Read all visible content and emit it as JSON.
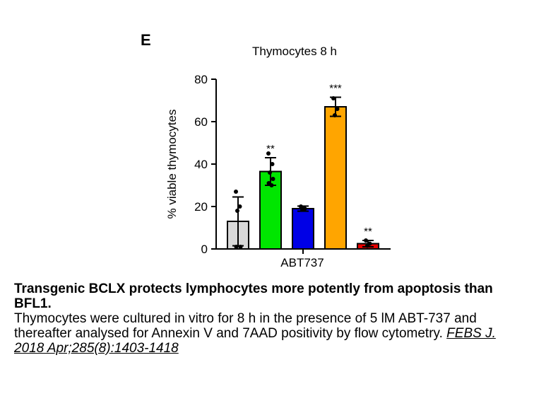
{
  "panel_letter": "E",
  "chart_data": {
    "type": "bar",
    "title": "Thymocytes 8 h",
    "ylabel": "% viable thymocytes",
    "xlabel": "ABT737",
    "ylim": [
      0,
      80
    ],
    "yticks": [
      0,
      20,
      40,
      60,
      80
    ],
    "grid": false,
    "bars": [
      {
        "value": 13,
        "error": 11.5,
        "color": "#d9d9d9",
        "significance": "",
        "points": [
          27,
          20,
          18,
          1,
          1
        ]
      },
      {
        "value": 36.5,
        "error": 6.5,
        "color": "#00e600",
        "significance": "**",
        "points": [
          45,
          40,
          36,
          33,
          31,
          30
        ]
      },
      {
        "value": 19,
        "error": 1.2,
        "color": "#0000e6",
        "significance": "",
        "points": [
          20,
          19,
          18.5
        ]
      },
      {
        "value": 67,
        "error": 4.5,
        "color": "#ffa500",
        "significance": "***",
        "points": [
          71,
          66,
          63
        ]
      },
      {
        "value": 2.5,
        "error": 1.5,
        "color": "#e60000",
        "significance": "**",
        "points": [
          4,
          2.5,
          1.5
        ]
      }
    ]
  },
  "caption": {
    "title": "Transgenic BCLX protects lymphocytes more potently from apoptosis than BFL1.",
    "body": "Thymocytes were cultured in vitro for 8 h in the presence of 5 lM ABT-737 and thereafter analysed for Annexin V and 7AAD positivity by flow cytometry.",
    "citation": "FEBS J. 2018 Apr;285(8):1403-1418"
  }
}
